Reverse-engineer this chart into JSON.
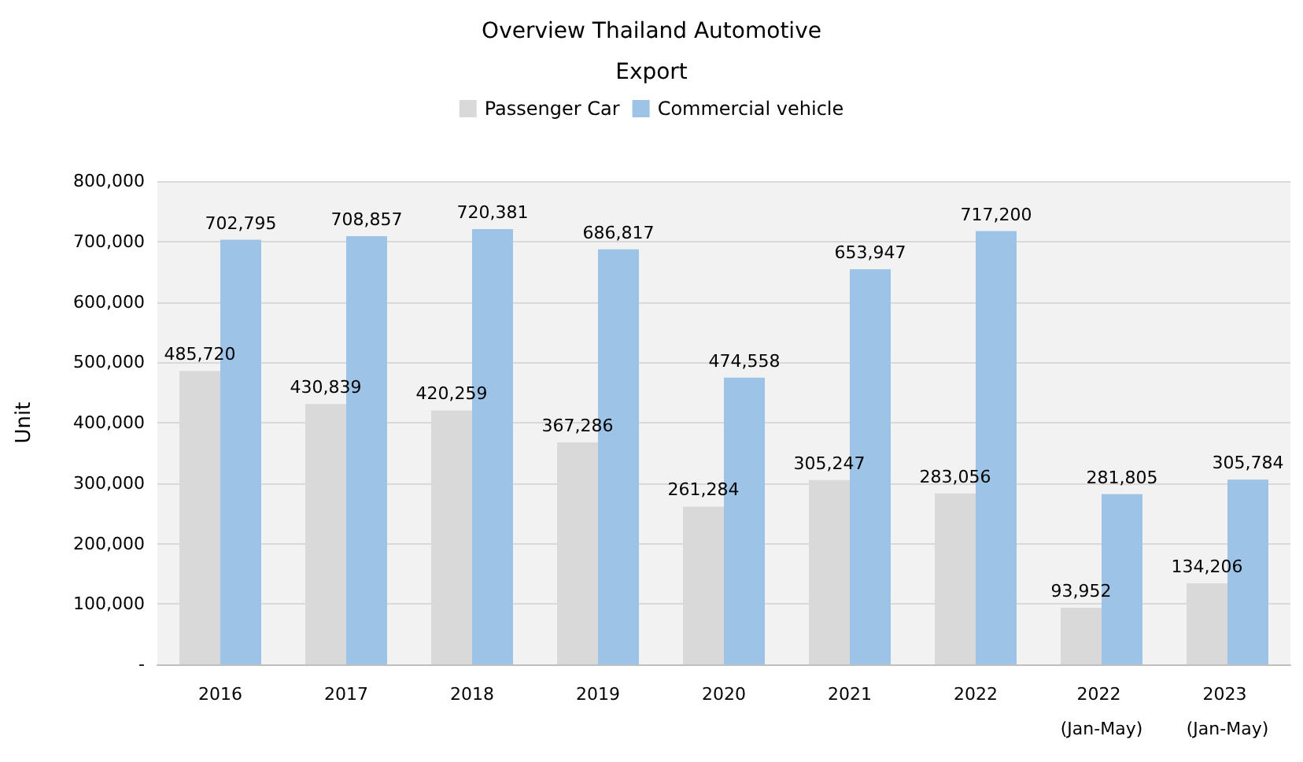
{
  "chart_data": {
    "type": "bar",
    "title": "Overview Thailand Automotive",
    "subtitle": "Export",
    "ylabel": "Unit",
    "categories": [
      "2016",
      "2017",
      "2018",
      "2019",
      "2020",
      "2021",
      "2022",
      "2022 (Jan-May)",
      "2023 (Jan-May)"
    ],
    "series": [
      {
        "name": "Passenger Car",
        "color": "#d9d9d9",
        "values": [
          485720,
          430839,
          420259,
          367286,
          261284,
          305247,
          283056,
          93952,
          134206
        ],
        "value_labels": [
          "485,720",
          "430,839",
          "420,259",
          "367,286",
          "261,284",
          "305,247",
          "283,056",
          "93,952",
          "134,206"
        ]
      },
      {
        "name": "Commercial vehicle",
        "color": "#9dc3e6",
        "values": [
          702795,
          708857,
          720381,
          686817,
          474558,
          653947,
          717200,
          281805,
          305784
        ],
        "value_labels": [
          "702,795",
          "708,857",
          "720,381",
          "686,817",
          "474,558",
          "653,947",
          "717,200",
          "281,805",
          "305,784"
        ]
      }
    ],
    "ylim": [
      0,
      800000
    ],
    "yticks": [
      {
        "value": 0,
        "label": "-"
      },
      {
        "value": 100000,
        "label": "100,000"
      },
      {
        "value": 200000,
        "label": "200,000"
      },
      {
        "value": 300000,
        "label": "300,000"
      },
      {
        "value": 400000,
        "label": "400,000"
      },
      {
        "value": 500000,
        "label": "500,000"
      },
      {
        "value": 600000,
        "label": "600,000"
      },
      {
        "value": 700000,
        "label": "700,000"
      },
      {
        "value": 800000,
        "label": "800,000"
      }
    ],
    "grid": "y",
    "legend": "top"
  }
}
